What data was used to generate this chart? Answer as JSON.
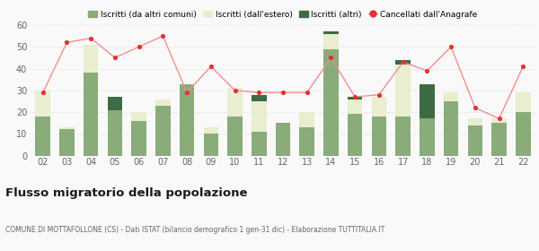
{
  "years": [
    "02",
    "03",
    "04",
    "05",
    "06",
    "07",
    "08",
    "09",
    "10",
    "11",
    "12",
    "13",
    "14",
    "15",
    "16",
    "17",
    "18",
    "19",
    "20",
    "21",
    "22"
  ],
  "iscritti_altri_comuni": [
    18,
    12,
    38,
    21,
    16,
    23,
    33,
    10,
    18,
    11,
    15,
    13,
    49,
    19,
    18,
    18,
    17,
    25,
    14,
    15,
    20
  ],
  "iscritti_estero": [
    12,
    1,
    13,
    0,
    4,
    3,
    0,
    3,
    13,
    14,
    0,
    7,
    7,
    7,
    9,
    24,
    0,
    4,
    3,
    2,
    9
  ],
  "iscritti_altri": [
    0,
    0,
    0,
    6,
    0,
    0,
    0,
    0,
    0,
    3,
    0,
    0,
    1,
    1,
    0,
    2,
    16,
    0,
    0,
    0,
    0
  ],
  "cancellati": [
    29,
    52,
    54,
    45,
    50,
    55,
    29,
    41,
    30,
    29,
    29,
    29,
    45,
    27,
    28,
    43,
    39,
    50,
    22,
    17,
    41
  ],
  "color_altri_comuni": "#8aab7a",
  "color_estero": "#e8eece",
  "color_altri": "#3d6b46",
  "color_cancellati": "#e83030",
  "color_cancellati_line": "#f09090",
  "bg_color": "#f9f9f9",
  "grid_color": "#d8d8d8",
  "title": "Flusso migratorio della popolazione",
  "subtitle": "COMUNE DI MOTTAFOLLONE (CS) - Dati ISTAT (bilancio demografico 1 gen-31 dic) - Elaborazione TUTTITALIA.IT",
  "ylabel_max": 60,
  "ylabel_min": 0,
  "legend_labels": [
    "Iscritti (da altri comuni)",
    "Iscritti (dall'estero)",
    "Iscritti (altri)",
    "Cancellati dall'Anagrafe"
  ]
}
